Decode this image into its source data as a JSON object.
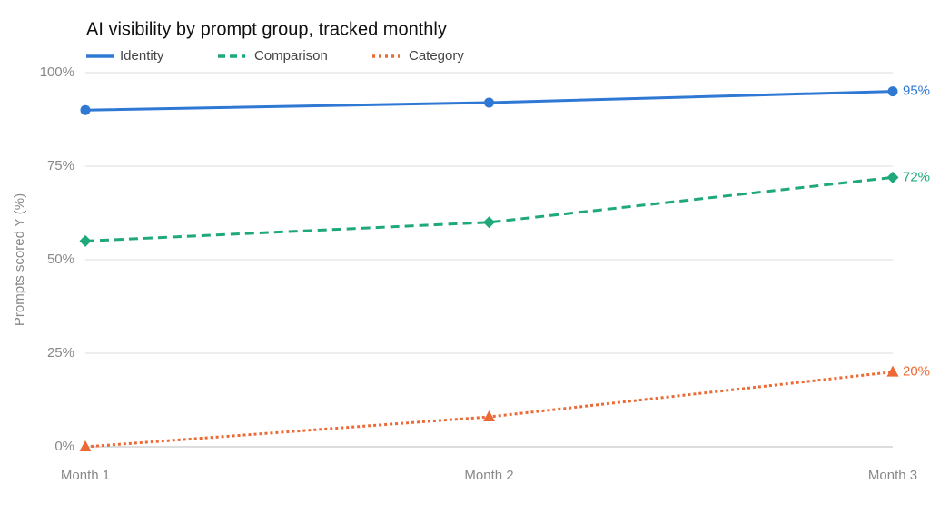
{
  "chart_data": {
    "type": "line",
    "title": "AI visibility by prompt group, tracked monthly",
    "y_label": "Prompts scored Y (%)",
    "categories": [
      "Month 1",
      "Month 2",
      "Month 3"
    ],
    "ylim": [
      0,
      100
    ],
    "yticks": [
      {
        "value": 0,
        "label": "0%"
      },
      {
        "value": 25,
        "label": "25%"
      },
      {
        "value": 50,
        "label": "50%"
      },
      {
        "value": 75,
        "label": "75%"
      },
      {
        "value": 100,
        "label": "100%"
      }
    ],
    "grid": true,
    "legend": "top-left",
    "series": [
      {
        "name": "Identity",
        "color": "#2f78d3",
        "line_style": "solid",
        "marker": "circle",
        "values": [
          90,
          92,
          95
        ],
        "value_labels": [
          null,
          null,
          "95%"
        ]
      },
      {
        "name": "Comparison",
        "color": "#1fa87a",
        "line_style": "dashed",
        "marker": "diamond",
        "values": [
          55,
          60,
          72
        ],
        "value_labels": [
          null,
          null,
          "72%"
        ]
      },
      {
        "name": "Category",
        "color": "#ec6a35",
        "line_style": "dotted",
        "marker": "triangle",
        "values": [
          0,
          8,
          20
        ],
        "value_labels": [
          null,
          null,
          "20%"
        ]
      }
    ]
  }
}
